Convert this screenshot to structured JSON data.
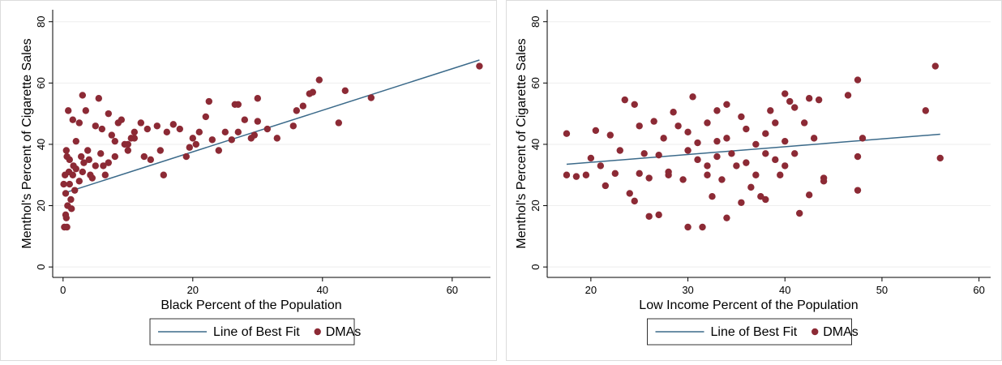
{
  "chart_data": [
    {
      "type": "scatter",
      "x_label": "Black Percent of the Population",
      "y_label": "Menthol's Percent of Cigarette Sales",
      "xlim": [
        -1.6,
        65.9
      ],
      "ylim": [
        -3.4,
        83.9
      ],
      "xticks": [
        0,
        20,
        40,
        60
      ],
      "yticks": [
        0,
        20,
        40,
        60,
        80
      ],
      "grid": true,
      "legend": "bottom",
      "series": [
        {
          "name": "Line of Best Fit",
          "type": "line",
          "color": "#3b6a8a",
          "x": [
            0,
            64.2
          ],
          "values": [
            24,
            67.5
          ]
        },
        {
          "name": "DMAs",
          "type": "scatter",
          "color": "#8c2a35",
          "x": [
            64.2,
            47.5,
            43.5,
            42.5,
            39.5,
            38.5,
            38,
            37,
            36,
            35.5,
            33,
            31.5,
            30,
            30,
            29.5,
            29,
            28,
            27,
            26.5,
            27,
            26,
            25,
            24,
            23,
            22.5,
            22,
            21,
            20.5,
            20,
            19.5,
            19,
            18,
            17,
            16,
            15.5,
            15,
            14.5,
            13.5,
            13,
            12.5,
            12,
            11,
            10.5,
            10,
            9.5,
            9,
            8.5,
            8,
            7.5,
            7,
            6.5,
            6,
            5.5,
            5,
            5,
            4.5,
            4,
            3.5,
            3,
            3,
            2.5,
            2.5,
            2,
            2,
            1.8,
            1.5,
            1.5,
            1.2,
            1,
            1,
            0.8,
            0.7,
            0.5,
            0.5,
            0.4,
            0.3,
            0.2,
            0.1,
            0.6,
            0.9,
            1.3,
            3.8,
            4.2,
            6.2,
            5.8,
            8,
            10,
            11,
            7,
            3.2,
            2.8,
            1.6,
            0.4,
            0.6
          ],
          "values": [
            65.5,
            55.2,
            57.5,
            47,
            61,
            57,
            56.5,
            52.5,
            51,
            46,
            42,
            45,
            47.5,
            55,
            43,
            42,
            48,
            53,
            53,
            44,
            41.5,
            44,
            38,
            41.5,
            54,
            49,
            44,
            40,
            42,
            39,
            36,
            45,
            46.5,
            44,
            30,
            38,
            46,
            35,
            45,
            36,
            47,
            44,
            42,
            38,
            40,
            48,
            47,
            36,
            43,
            50,
            30,
            45,
            55,
            33,
            46,
            29,
            35,
            51,
            56,
            31,
            28,
            47,
            32,
            41,
            25,
            48,
            30,
            22,
            27,
            35,
            51,
            20,
            38,
            16,
            24,
            30,
            13,
            27,
            36,
            31,
            19,
            38,
            30,
            33,
            37,
            41,
            40,
            42,
            34,
            34,
            36,
            33,
            17,
            13
          ]
        }
      ]
    },
    {
      "type": "scatter",
      "x_label": "Low Income Percent of the Population",
      "y_label": "Menthol's Percent of Cigarette Sales",
      "xlim": [
        15.5,
        61.2
      ],
      "ylim": [
        -3.4,
        83.9
      ],
      "xticks": [
        20,
        30,
        40,
        50,
        60
      ],
      "yticks": [
        0,
        20,
        40,
        60,
        80
      ],
      "grid": true,
      "legend": "bottom",
      "series": [
        {
          "name": "Line of Best Fit",
          "type": "line",
          "color": "#3b6a8a",
          "x": [
            17.5,
            56
          ],
          "values": [
            33.5,
            43.3
          ]
        },
        {
          "name": "DMAs",
          "type": "scatter",
          "color": "#8c2a35",
          "x": [
            17.5,
            17.5,
            18.5,
            19.5,
            20,
            20.5,
            21,
            21.5,
            22,
            22.5,
            23,
            23.5,
            24,
            24.5,
            24.5,
            25,
            25.5,
            26,
            26,
            26.5,
            27,
            27,
            27.5,
            28,
            28.5,
            29,
            29.5,
            30,
            30,
            30.5,
            31,
            31,
            31.5,
            32,
            32,
            32.5,
            33,
            33,
            33.5,
            34,
            34,
            34.5,
            35,
            35.5,
            35.5,
            36,
            36.5,
            37,
            37,
            37.5,
            38,
            38,
            38.5,
            39,
            39,
            39.5,
            40,
            40,
            40.5,
            41,
            41,
            41.5,
            42,
            42.5,
            42.5,
            43,
            43.5,
            44,
            44,
            46.5,
            47.5,
            47.5,
            47.5,
            48,
            54.5,
            55.5,
            56,
            25,
            28,
            30,
            32,
            34,
            36,
            38,
            40,
            33
          ],
          "values": [
            43.5,
            30,
            29.5,
            30,
            35.5,
            44.5,
            33,
            26.5,
            43,
            30.5,
            38,
            54.5,
            24,
            21.5,
            53,
            46,
            37,
            29,
            16.5,
            47.5,
            17,
            36.5,
            42,
            30,
            50.5,
            46,
            28.5,
            13,
            44,
            55.5,
            35,
            40.5,
            13,
            47,
            33,
            23,
            51,
            41,
            28.5,
            16,
            53,
            37,
            33,
            49,
            21,
            45,
            26,
            40,
            30,
            23,
            43.5,
            22,
            51,
            35,
            47,
            30,
            56.5,
            41,
            54,
            37,
            52,
            17.5,
            47,
            55,
            23.5,
            42,
            54.5,
            28,
            29,
            56,
            61,
            36,
            25,
            42,
            51,
            65.5,
            35.5,
            30.5,
            31,
            38,
            30,
            42,
            34,
            37,
            33,
            36
          ]
        }
      ]
    }
  ]
}
